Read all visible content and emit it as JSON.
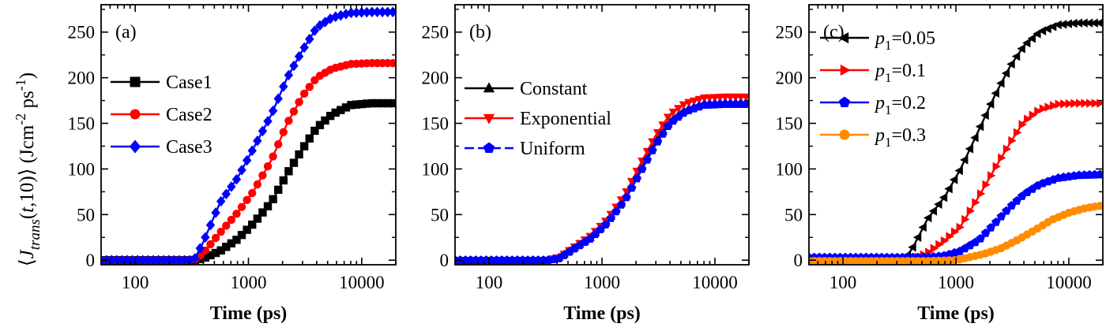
{
  "chart_data": [
    {
      "type": "line",
      "panel_label": "(a)",
      "xlabel": "Time (ps)",
      "ylabel": "⟨J_trans(t,10)⟩ (Jcm^-2 ps^-1)",
      "xscale": "log",
      "xlim": [
        50,
        20000
      ],
      "ylim": [
        -5,
        280
      ],
      "xticks": [
        100,
        1000,
        10000
      ],
      "yticks": [
        0,
        50,
        100,
        150,
        200,
        250
      ],
      "legend_position": "center-left",
      "series": [
        {
          "name": "Case1",
          "color": "#000000",
          "marker": "square",
          "x": [
            50,
            330,
            400,
            560,
            800,
            1100,
            1600,
            2200,
            3000,
            4000,
            5500,
            8000,
            12000,
            20000
          ],
          "y": [
            0,
            0,
            2,
            10,
            23,
            40,
            64,
            95,
            122,
            145,
            160,
            170,
            172,
            172
          ]
        },
        {
          "name": "Case2",
          "color": "#ff0000",
          "marker": "circle",
          "x": [
            50,
            330,
            400,
            560,
            800,
            1100,
            1600,
            2200,
            3000,
            4000,
            5500,
            8000,
            12000,
            20000
          ],
          "y": [
            0,
            0,
            8,
            30,
            52,
            75,
            110,
            150,
            180,
            200,
            210,
            215,
            216,
            216
          ]
        },
        {
          "name": "Case3",
          "color": "#0000ff",
          "marker": "diamond",
          "x": [
            50,
            330,
            400,
            560,
            800,
            1100,
            1600,
            2200,
            3000,
            4000,
            5500,
            8000,
            12000,
            20000
          ],
          "y": [
            0,
            0,
            20,
            63,
            90,
            122,
            160,
            200,
            230,
            255,
            266,
            271,
            272,
            272
          ]
        }
      ]
    },
    {
      "type": "line",
      "panel_label": "(b)",
      "xlabel": "Time (ps)",
      "xscale": "log",
      "xlim": [
        50,
        20000
      ],
      "ylim": [
        -5,
        280
      ],
      "xticks": [
        100,
        1000,
        10000
      ],
      "yticks": [
        0,
        50,
        100,
        150,
        200,
        250
      ],
      "legend_position": "center-left",
      "series": [
        {
          "name": "Constant",
          "color": "#000000",
          "marker": "triangle-up",
          "x": [
            50,
            330,
            420,
            560,
            800,
            1100,
            1600,
            2200,
            3000,
            4000,
            5500,
            8000,
            12000,
            20000
          ],
          "y": [
            0,
            0,
            3,
            13,
            25,
            42,
            68,
            100,
            130,
            152,
            165,
            172,
            173,
            173
          ]
        },
        {
          "name": "Exponential",
          "color": "#ff0000",
          "marker": "triangle-down",
          "x": [
            50,
            330,
            420,
            560,
            800,
            1100,
            1600,
            2200,
            3000,
            4000,
            5500,
            8000,
            12000,
            20000
          ],
          "y": [
            0,
            0,
            3,
            14,
            27,
            44,
            72,
            106,
            137,
            160,
            172,
            178,
            179,
            179
          ]
        },
        {
          "name": "Uniform",
          "color": "#0000ff",
          "marker": "pentagon",
          "x": [
            50,
            330,
            420,
            560,
            800,
            1100,
            1600,
            2200,
            3000,
            4000,
            5500,
            8000,
            12000,
            20000
          ],
          "y": [
            0,
            0,
            2,
            12,
            24,
            40,
            66,
            97,
            127,
            150,
            163,
            170,
            171,
            171
          ]
        }
      ]
    },
    {
      "type": "line",
      "panel_label": "(c)",
      "xlabel": "Time (ps)",
      "xscale": "log",
      "xlim": [
        50,
        20000
      ],
      "ylim": [
        -5,
        280
      ],
      "xticks": [
        100,
        1000,
        10000
      ],
      "yticks": [
        0,
        50,
        100,
        150,
        200,
        250
      ],
      "legend_position": "top-left",
      "series": [
        {
          "name": "0.05",
          "name_prefix": "p",
          "name_sub": "1",
          "color": "#000000",
          "marker": "triangle-left",
          "x": [
            50,
            350,
            420,
            560,
            800,
            1100,
            1600,
            2200,
            3000,
            4000,
            5500,
            8000,
            12000,
            20000
          ],
          "y": [
            0,
            0,
            15,
            45,
            70,
            100,
            143,
            180,
            212,
            235,
            250,
            258,
            260,
            260
          ]
        },
        {
          "name": "0.1",
          "name_prefix": "p",
          "name_sub": "1",
          "color": "#ff0000",
          "marker": "triangle-right",
          "x": [
            50,
            400,
            560,
            800,
            1100,
            1600,
            2200,
            3000,
            4000,
            5500,
            8000,
            12000,
            20000
          ],
          "y": [
            0,
            0,
            8,
            22,
            37,
            70,
            100,
            128,
            152,
            165,
            171,
            172,
            172
          ]
        },
        {
          "name": "0.2",
          "name_prefix": "p",
          "name_sub": "1",
          "color": "#0000ff",
          "marker": "pentagon",
          "x": [
            50,
            560,
            800,
            1100,
            1600,
            2200,
            3000,
            4000,
            5500,
            8000,
            12000,
            20000
          ],
          "y": [
            3,
            3,
            5,
            10,
            22,
            40,
            58,
            72,
            83,
            90,
            93,
            94
          ]
        },
        {
          "name": "0.3",
          "name_prefix": "p",
          "name_sub": "1",
          "color": "#ff8c00",
          "marker": "circle",
          "x": [
            50,
            560,
            1000,
            1300,
            1800,
            2500,
            3500,
            5000,
            7000,
            10000,
            14000,
            20000
          ],
          "y": [
            -1,
            -1,
            0,
            3,
            7,
            13,
            22,
            33,
            44,
            52,
            57,
            60
          ]
        }
      ]
    }
  ]
}
